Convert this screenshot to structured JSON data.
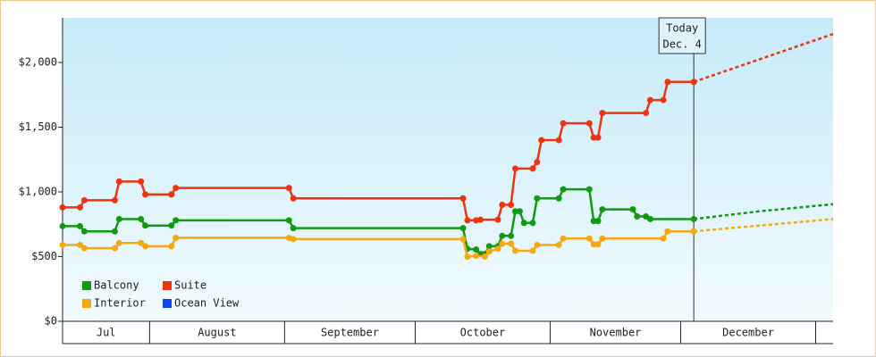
{
  "chart_data": {
    "type": "line",
    "xlim": [
      0,
      177
    ],
    "ylim": [
      0,
      2345
    ],
    "yticks": [
      {
        "value": 0,
        "label": "$0"
      },
      {
        "value": 500,
        "label": "$500"
      },
      {
        "value": 1000,
        "label": "$1,000"
      },
      {
        "value": 1500,
        "label": "$1,500"
      },
      {
        "value": 2000,
        "label": "$2,000"
      }
    ],
    "xticks": [
      20,
      51,
      81,
      112,
      142,
      173
    ],
    "months": [
      {
        "label": "Jul",
        "start": 0,
        "end": 20
      },
      {
        "label": "August",
        "start": 20,
        "end": 51
      },
      {
        "label": "September",
        "start": 51,
        "end": 81
      },
      {
        "label": "October",
        "start": 81,
        "end": 112
      },
      {
        "label": "November",
        "start": 112,
        "end": 142
      },
      {
        "label": "December",
        "start": 142,
        "end": 173
      }
    ],
    "today": {
      "x": 145,
      "label": [
        "Today",
        "Dec. 4"
      ]
    },
    "series": [
      {
        "name": "Balcony",
        "color": "#119911",
        "x": [
          0,
          4,
          5,
          12,
          13,
          18,
          19,
          25,
          26,
          52,
          53,
          92,
          93,
          95,
          96,
          97,
          98,
          100,
          101,
          103,
          104,
          105,
          106,
          108,
          109,
          114,
          115,
          121,
          122,
          123,
          124,
          131,
          132,
          134,
          135,
          145
        ],
        "values": [
          735,
          735,
          695,
          695,
          790,
          790,
          740,
          740,
          780,
          780,
          720,
          720,
          560,
          555,
          520,
          520,
          580,
          580,
          660,
          660,
          850,
          850,
          760,
          760,
          950,
          950,
          1020,
          1020,
          775,
          775,
          865,
          865,
          810,
          810,
          790,
          790
        ],
        "forecast_x": [
          145,
          160,
          177
        ],
        "forecast_values": [
          790,
          850,
          905
        ]
      },
      {
        "name": "Suite",
        "color": "#ee3311",
        "x": [
          0,
          4,
          5,
          12,
          13,
          18,
          19,
          25,
          26,
          52,
          53,
          92,
          93,
          95,
          96,
          100,
          101,
          103,
          104,
          108,
          109,
          110,
          114,
          115,
          121,
          122,
          123,
          124,
          134,
          135,
          138,
          139,
          145
        ],
        "values": [
          880,
          880,
          935,
          935,
          1080,
          1080,
          980,
          980,
          1030,
          1030,
          950,
          950,
          780,
          780,
          785,
          785,
          900,
          900,
          1180,
          1180,
          1230,
          1400,
          1400,
          1530,
          1530,
          1420,
          1420,
          1610,
          1610,
          1710,
          1710,
          1850,
          1850
        ],
        "forecast_x": [
          145,
          177
        ],
        "forecast_values": [
          1850,
          2220
        ]
      },
      {
        "name": "Interior",
        "color": "#f5a810",
        "x": [
          0,
          4,
          5,
          12,
          13,
          18,
          19,
          25,
          26,
          52,
          53,
          92,
          93,
          95,
          97,
          98,
          100,
          101,
          103,
          104,
          108,
          109,
          114,
          115,
          121,
          122,
          123,
          124,
          138,
          139,
          145
        ],
        "values": [
          590,
          590,
          565,
          565,
          605,
          605,
          580,
          580,
          645,
          645,
          635,
          635,
          500,
          505,
          500,
          540,
          560,
          600,
          600,
          545,
          545,
          590,
          590,
          640,
          640,
          595,
          595,
          640,
          640,
          695,
          695
        ],
        "forecast_x": [
          145,
          177
        ],
        "forecast_values": [
          695,
          790
        ]
      },
      {
        "name": "Ocean View",
        "color": "#1144ee",
        "x": [],
        "values": [],
        "forecast_x": [],
        "forecast_values": []
      }
    ]
  }
}
